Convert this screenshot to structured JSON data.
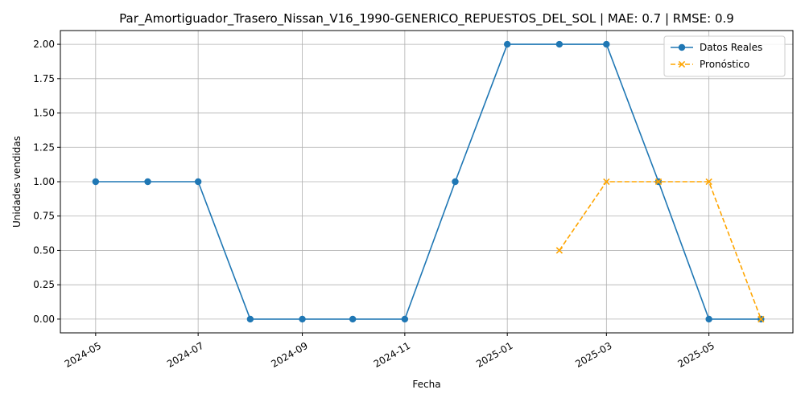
{
  "chart_data": {
    "type": "line",
    "title": "Par_Amortiguador_Trasero_Nissan_V16_1990-GENERICO_REPUESTOS_DEL_SOL | MAE: 0.7 | RMSE: 0.9",
    "xlabel": "Fecha",
    "ylabel": "Unidades vendidas",
    "xlim": [
      "2024-04-10",
      "2025-06-20"
    ],
    "ylim": [
      -0.1,
      2.1
    ],
    "grid": true,
    "legend_position": "top-right",
    "x_ticks": [
      "2024-05-01",
      "2024-07-01",
      "2024-09-01",
      "2024-11-01",
      "2025-01-01",
      "2025-03-01",
      "2025-05-01"
    ],
    "x_tick_labels": [
      "2024-05",
      "2024-07",
      "2024-09",
      "2024-11",
      "2025-01",
      "2025-03",
      "2025-05"
    ],
    "y_ticks": [
      0.0,
      0.25,
      0.5,
      0.75,
      1.0,
      1.25,
      1.5,
      1.75,
      2.0
    ],
    "y_tick_labels": [
      "0.00",
      "0.25",
      "0.50",
      "0.75",
      "1.00",
      "1.25",
      "1.50",
      "1.75",
      "2.00"
    ],
    "series": [
      {
        "name": "Datos Reales",
        "color": "#1f77b4",
        "marker": "circle",
        "line_style": "solid",
        "x": [
          "2024-05-01",
          "2024-06-01",
          "2024-07-01",
          "2024-08-01",
          "2024-09-01",
          "2024-10-01",
          "2024-11-01",
          "2024-12-01",
          "2025-01-01",
          "2025-02-01",
          "2025-03-01",
          "2025-04-01",
          "2025-05-01",
          "2025-06-01"
        ],
        "y": [
          1,
          1,
          1,
          0,
          0,
          0,
          0,
          1,
          2,
          2,
          2,
          1,
          0,
          0
        ]
      },
      {
        "name": "Pronóstico",
        "color": "#ffa500",
        "marker": "x",
        "line_style": "dashed",
        "x": [
          "2025-02-01",
          "2025-03-01",
          "2025-04-01",
          "2025-05-01",
          "2025-06-01"
        ],
        "y": [
          0.5,
          1,
          1,
          1,
          0
        ]
      }
    ]
  }
}
